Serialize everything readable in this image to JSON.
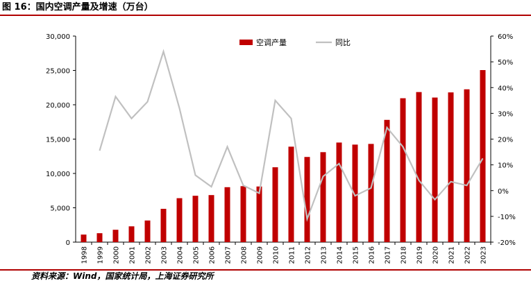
{
  "figure": {
    "title": "图 16：国内空调产量及增速（万台）",
    "source": "资料来源：Wind，国家统计局，上海证券研究所"
  },
  "colors": {
    "bar": "#c00000",
    "line": "#c0c0c0",
    "rule": "#b00000"
  },
  "chart_data": {
    "type": "bar",
    "categories": [
      "1998",
      "1999",
      "2000",
      "2001",
      "2002",
      "2003",
      "2004",
      "2005",
      "2006",
      "2007",
      "2008",
      "2009",
      "2010",
      "2011",
      "2012",
      "2013",
      "2014",
      "2015",
      "2016",
      "2017",
      "2018",
      "2019",
      "2020",
      "2021",
      "2022",
      "2023"
    ],
    "series": [
      {
        "name": "空调产量",
        "type": "bar",
        "axis": "left",
        "values": [
          1100,
          1300,
          1800,
          2300,
          3150,
          4850,
          6400,
          6750,
          6850,
          8000,
          8150,
          8100,
          10900,
          13900,
          12400,
          13100,
          14500,
          14200,
          14300,
          17800,
          20950,
          21850,
          21050,
          21800,
          22250,
          25050
        ]
      },
      {
        "name": "同比",
        "type": "line",
        "axis": "right",
        "values": [
          null,
          15.5,
          36.5,
          28,
          34.5,
          54,
          32,
          6,
          1.5,
          17,
          2,
          -1,
          35,
          28,
          -11,
          5.5,
          10.5,
          -2,
          1,
          24.5,
          17,
          4,
          -3.5,
          3.5,
          2,
          12.5
        ]
      }
    ],
    "left_axis": {
      "min": 0,
      "max": 30000,
      "ticks": [
        "0",
        "5,000",
        "10,000",
        "15,000",
        "20,000",
        "25,000",
        "30,000"
      ]
    },
    "right_axis": {
      "min": -20,
      "max": 60,
      "ticks": [
        "-20%",
        "-10%",
        "0%",
        "10%",
        "20%",
        "30%",
        "40%",
        "50%",
        "60%"
      ]
    },
    "legend": {
      "placement": "top-center"
    },
    "grid": false
  }
}
